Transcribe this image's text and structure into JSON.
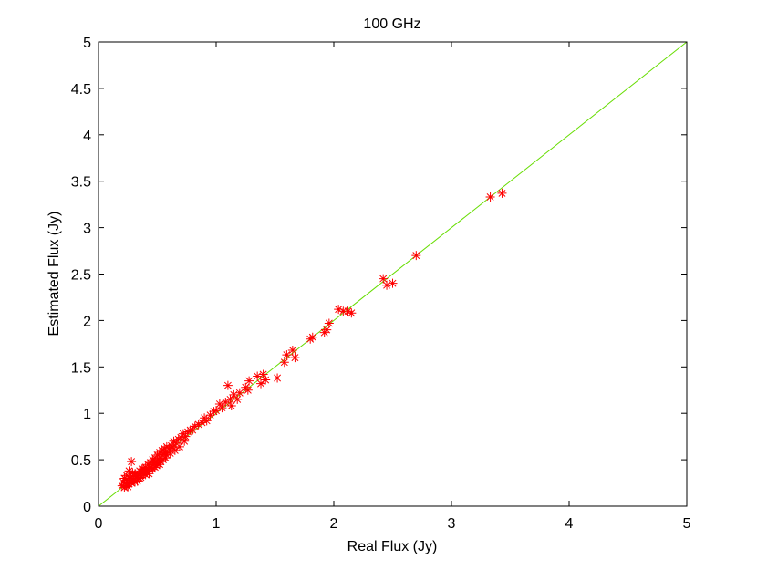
{
  "chart_data": {
    "type": "scatter",
    "title": "100 GHz",
    "xlabel": "Real Flux (Jy)",
    "ylabel": "Estimated Flux (Jy)",
    "xlim": [
      0,
      5
    ],
    "ylim": [
      0,
      5
    ],
    "x_ticks": [
      "0",
      "1",
      "2",
      "3",
      "4",
      "5"
    ],
    "y_ticks": [
      "0",
      "0.5",
      "1",
      "1.5",
      "2",
      "2.5",
      "3",
      "3.5",
      "4",
      "4.5",
      "5"
    ],
    "grid": false,
    "marker": "asterisk",
    "colors": {
      "points": "#ff0000",
      "reference_line": "#66dd00",
      "axes": "#000000"
    },
    "reference_line": {
      "x": [
        0,
        5
      ],
      "y": [
        0,
        5
      ]
    },
    "points": {
      "x": [
        0.2,
        0.21,
        0.22,
        0.22,
        0.23,
        0.24,
        0.24,
        0.25,
        0.26,
        0.27,
        0.28,
        0.28,
        0.29,
        0.3,
        0.31,
        0.32,
        0.33,
        0.34,
        0.35,
        0.36,
        0.37,
        0.38,
        0.39,
        0.4,
        0.41,
        0.42,
        0.43,
        0.44,
        0.45,
        0.46,
        0.47,
        0.48,
        0.49,
        0.5,
        0.51,
        0.52,
        0.53,
        0.54,
        0.55,
        0.56,
        0.57,
        0.58,
        0.6,
        0.62,
        0.64,
        0.66,
        0.68,
        0.7,
        0.72,
        0.74,
        0.76,
        0.78,
        0.8,
        0.82,
        0.85,
        0.88,
        0.9,
        0.92,
        0.95,
        0.98,
        1.0,
        1.03,
        1.05,
        1.08,
        1.1,
        1.12,
        1.15,
        1.18,
        1.2,
        1.25,
        1.28,
        1.35,
        1.38,
        1.4,
        1.42,
        1.52,
        1.58,
        1.6,
        1.65,
        1.67,
        1.8,
        1.82,
        1.92,
        1.94,
        1.96,
        2.04,
        2.08,
        2.12,
        2.15,
        2.42,
        2.45,
        2.5,
        2.7,
        3.33,
        3.43,
        0.27,
        0.3,
        0.35,
        0.4,
        0.46,
        0.52,
        0.58,
        0.63,
        0.26,
        0.33,
        0.38,
        0.43,
        0.48,
        0.5,
        0.55,
        0.22,
        0.25,
        0.29,
        0.31,
        0.36,
        0.41,
        0.44,
        0.49,
        0.53,
        0.57,
        0.61,
        0.65,
        0.69,
        0.73,
        1.13,
        1.27
      ],
      "y": [
        0.22,
        0.26,
        0.2,
        0.3,
        0.25,
        0.22,
        0.33,
        0.28,
        0.24,
        0.3,
        0.48,
        0.25,
        0.32,
        0.28,
        0.35,
        0.3,
        0.33,
        0.3,
        0.38,
        0.33,
        0.4,
        0.36,
        0.35,
        0.42,
        0.38,
        0.45,
        0.4,
        0.47,
        0.42,
        0.5,
        0.45,
        0.52,
        0.48,
        0.55,
        0.5,
        0.58,
        0.52,
        0.6,
        0.56,
        0.62,
        0.58,
        0.64,
        0.62,
        0.65,
        0.7,
        0.68,
        0.72,
        0.74,
        0.78,
        0.75,
        0.8,
        0.82,
        0.82,
        0.86,
        0.88,
        0.9,
        0.95,
        0.92,
        0.98,
        1.02,
        1.03,
        1.1,
        1.06,
        1.12,
        1.3,
        1.15,
        1.2,
        1.15,
        1.22,
        1.28,
        1.35,
        1.4,
        1.32,
        1.42,
        1.36,
        1.38,
        1.55,
        1.63,
        1.68,
        1.6,
        1.8,
        1.82,
        1.87,
        1.9,
        1.97,
        2.12,
        2.1,
        2.1,
        2.08,
        2.45,
        2.38,
        2.4,
        2.7,
        3.33,
        3.37,
        0.26,
        0.33,
        0.3,
        0.34,
        0.4,
        0.45,
        0.55,
        0.63,
        0.38,
        0.27,
        0.4,
        0.35,
        0.42,
        0.46,
        0.5,
        0.3,
        0.21,
        0.36,
        0.26,
        0.31,
        0.37,
        0.41,
        0.44,
        0.48,
        0.52,
        0.57,
        0.6,
        0.64,
        0.7,
        1.08,
        1.25
      ]
    }
  }
}
